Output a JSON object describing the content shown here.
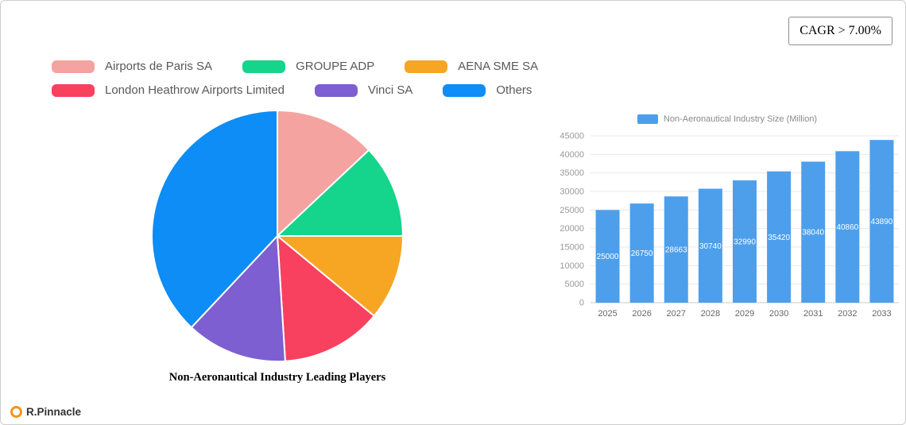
{
  "cagr_badge": {
    "label": "CAGR > 7.00%"
  },
  "brand": {
    "label": "R.Pinnacle"
  },
  "chart_data": [
    {
      "type": "pie",
      "title": "Non-Aeronautical Industry Leading Players",
      "legend_position": "top",
      "start_angle_deg": 0,
      "direction": "clockwise",
      "slices": [
        {
          "label": "Airports de Paris SA",
          "value_pct": 13,
          "color": "#f5a3a0"
        },
        {
          "label": "GROUPE ADP",
          "value_pct": 12,
          "color": "#15d48b"
        },
        {
          "label": "AENA SME SA",
          "value_pct": 11,
          "color": "#f6a623"
        },
        {
          "label": "London Heathrow Airports Limited",
          "value_pct": 13,
          "color": "#f8405f"
        },
        {
          "label": "Vinci SA",
          "value_pct": 13,
          "color": "#7d5fd1"
        },
        {
          "label": "Others",
          "value_pct": 38,
          "color": "#0d8df5"
        }
      ]
    },
    {
      "type": "bar",
      "legend": "Non-Aeronautical Industry Size (Million)",
      "bar_color": "#4d9fec",
      "categories": [
        "2025",
        "2026",
        "2027",
        "2028",
        "2029",
        "2030",
        "2031",
        "2032",
        "2033"
      ],
      "values": [
        25000,
        26750,
        28663,
        30740,
        32990,
        35420,
        38040,
        40860,
        43890
      ],
      "value_labels_shown": true,
      "ylim": [
        0,
        45000
      ],
      "y_ticks": [
        0,
        5000,
        10000,
        15000,
        20000,
        25000,
        30000,
        35000,
        40000,
        45000
      ],
      "grid": true,
      "legend_position": "top"
    }
  ]
}
